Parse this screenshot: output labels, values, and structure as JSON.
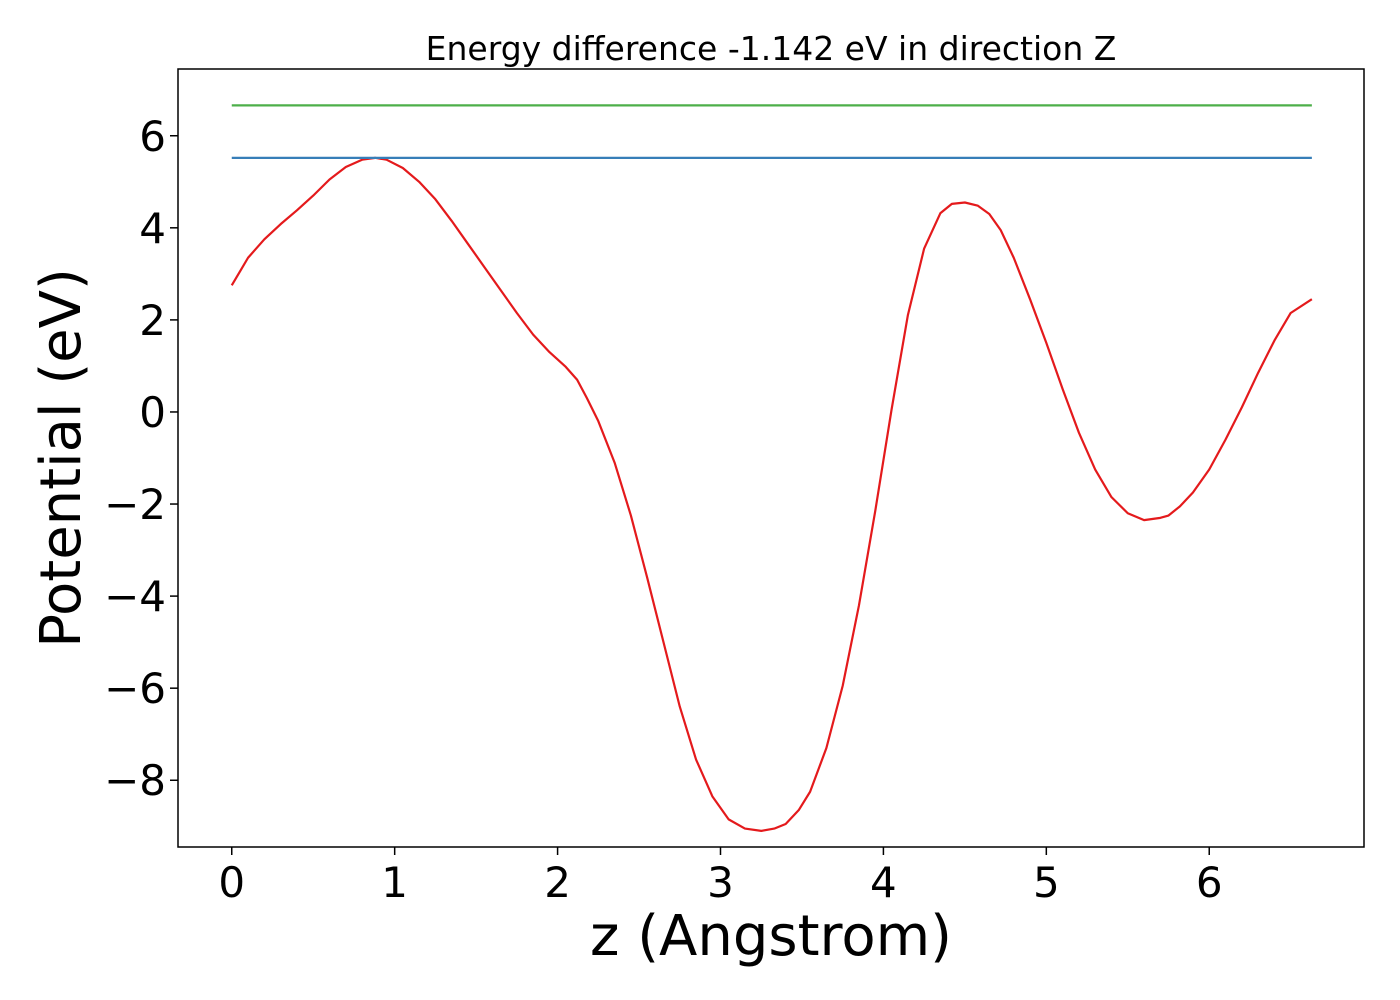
{
  "chart_data": {
    "type": "line",
    "title": "Energy difference -1.142 eV in direction Z",
    "xlabel": "z (Angstrom)",
    "ylabel": "Potential (eV)",
    "xlim": [
      -0.33,
      6.95
    ],
    "ylim": [
      -9.45,
      7.45
    ],
    "xticks": [
      0,
      1,
      2,
      3,
      4,
      5,
      6
    ],
    "yticks": [
      -8,
      -6,
      -4,
      -2,
      0,
      2,
      4,
      6
    ],
    "grid": false,
    "series": [
      {
        "color": "#e41a1c",
        "x": [
          0.0,
          0.05,
          0.1,
          0.2,
          0.3,
          0.4,
          0.5,
          0.6,
          0.7,
          0.8,
          0.88,
          0.95,
          1.05,
          1.15,
          1.25,
          1.35,
          1.45,
          1.55,
          1.65,
          1.75,
          1.85,
          1.95,
          2.05,
          2.12,
          2.18,
          2.25,
          2.35,
          2.45,
          2.55,
          2.65,
          2.75,
          2.85,
          2.95,
          3.05,
          3.15,
          3.25,
          3.33,
          3.4,
          3.48,
          3.55,
          3.65,
          3.75,
          3.85,
          3.95,
          4.05,
          4.15,
          4.25,
          4.35,
          4.42,
          4.5,
          4.58,
          4.65,
          4.72,
          4.8,
          4.9,
          5.0,
          5.1,
          5.2,
          5.3,
          5.4,
          5.5,
          5.6,
          5.7,
          5.75,
          5.82,
          5.9,
          6.0,
          6.1,
          6.2,
          6.3,
          6.4,
          6.5,
          6.63
        ],
        "y": [
          2.75,
          3.05,
          3.35,
          3.75,
          4.08,
          4.38,
          4.7,
          5.05,
          5.32,
          5.48,
          5.52,
          5.48,
          5.3,
          5.0,
          4.62,
          4.15,
          3.65,
          3.15,
          2.65,
          2.15,
          1.68,
          1.3,
          0.98,
          0.7,
          0.3,
          -0.2,
          -1.1,
          -2.25,
          -3.6,
          -5.0,
          -6.4,
          -7.55,
          -8.35,
          -8.85,
          -9.05,
          -9.1,
          -9.05,
          -8.95,
          -8.65,
          -8.25,
          -7.3,
          -5.95,
          -4.2,
          -2.15,
          0.05,
          2.1,
          3.55,
          4.32,
          4.52,
          4.55,
          4.48,
          4.3,
          3.95,
          3.35,
          2.45,
          1.5,
          0.5,
          -0.45,
          -1.25,
          -1.85,
          -2.2,
          -2.35,
          -2.3,
          -2.25,
          -2.05,
          -1.75,
          -1.25,
          -0.6,
          0.1,
          0.85,
          1.55,
          2.15,
          2.45
        ]
      },
      {
        "color": "#377eb8",
        "x": [
          0.0,
          6.63
        ],
        "y": [
          5.52,
          5.52
        ]
      },
      {
        "color": "#4daf4a",
        "x": [
          0.0,
          6.63
        ],
        "y": [
          6.66,
          6.66
        ]
      }
    ]
  }
}
